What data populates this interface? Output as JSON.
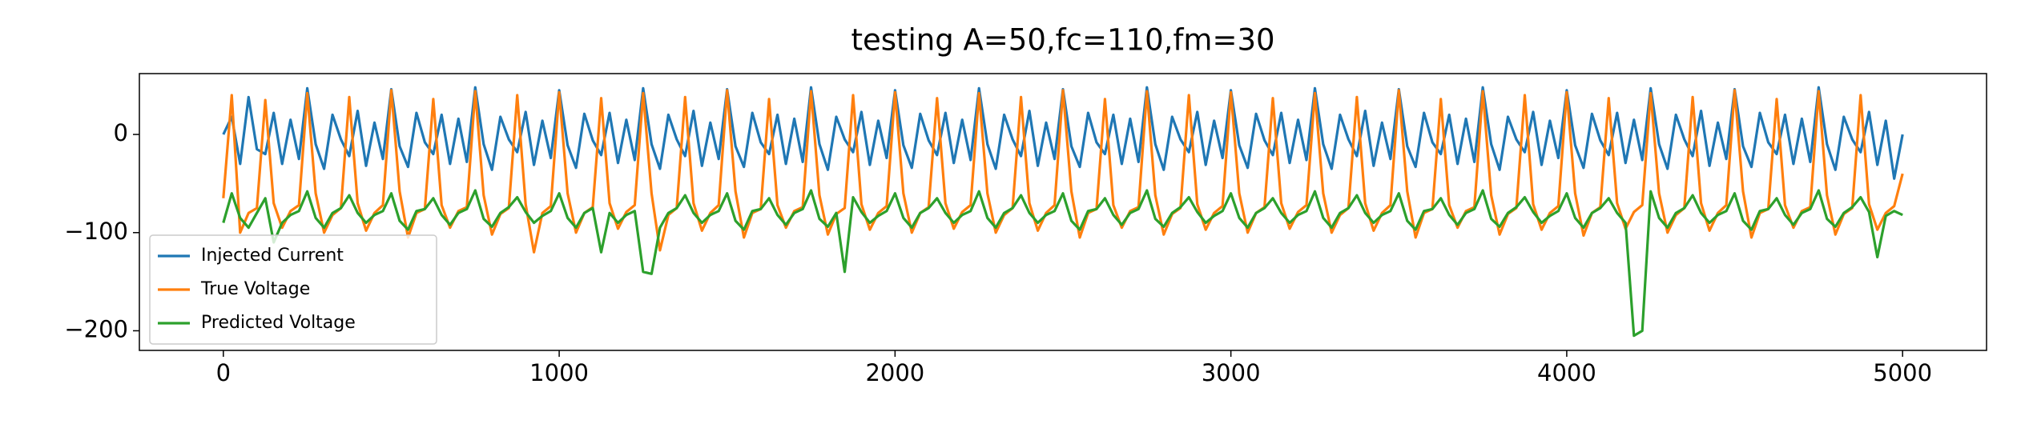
{
  "chart_data": {
    "type": "line",
    "title": "testing A=50,fc=110,fm=30",
    "xlim": [
      -250,
      5250
    ],
    "ylim": [
      -220,
      62
    ],
    "xticks": [
      0,
      1000,
      2000,
      3000,
      4000,
      5000
    ],
    "yticks": [
      {
        "value": 0,
        "label": "0"
      },
      {
        "value": -100,
        "label": "−100"
      },
      {
        "value": -200,
        "label": "−200"
      }
    ],
    "legend": "lower left",
    "x": [
      0,
      25,
      50,
      75,
      100,
      125,
      150,
      175,
      200,
      225,
      250,
      275,
      300,
      325,
      350,
      375,
      400,
      425,
      450,
      475,
      500,
      525,
      550,
      575,
      600,
      625,
      650,
      675,
      700,
      725,
      750,
      775,
      800,
      825,
      850,
      875,
      900,
      925,
      950,
      975,
      1000,
      1025,
      1050,
      1075,
      1100,
      1125,
      1150,
      1175,
      1200,
      1225,
      1250,
      1275,
      1300,
      1325,
      1350,
      1375,
      1400,
      1425,
      1450,
      1475,
      1500,
      1525,
      1550,
      1575,
      1600,
      1625,
      1650,
      1675,
      1700,
      1725,
      1750,
      1775,
      1800,
      1825,
      1850,
      1875,
      1900,
      1925,
      1950,
      1975,
      2000,
      2025,
      2050,
      2075,
      2100,
      2125,
      2150,
      2175,
      2200,
      2225,
      2250,
      2275,
      2300,
      2325,
      2350,
      2375,
      2400,
      2425,
      2450,
      2475,
      2500,
      2525,
      2550,
      2575,
      2600,
      2625,
      2650,
      2675,
      2700,
      2725,
      2750,
      2775,
      2800,
      2825,
      2850,
      2875,
      2900,
      2925,
      2950,
      2975,
      3000,
      3025,
      3050,
      3075,
      3100,
      3125,
      3150,
      3175,
      3200,
      3225,
      3250,
      3275,
      3300,
      3325,
      3350,
      3375,
      3400,
      3425,
      3450,
      3475,
      3500,
      3525,
      3550,
      3575,
      3600,
      3625,
      3650,
      3675,
      3700,
      3725,
      3750,
      3775,
      3800,
      3825,
      3850,
      3875,
      3900,
      3925,
      3950,
      3975,
      4000,
      4025,
      4050,
      4075,
      4100,
      4125,
      4150,
      4175,
      4200,
      4225,
      4250,
      4275,
      4300,
      4325,
      4350,
      4375,
      4400,
      4425,
      4450,
      4475,
      4500,
      4525,
      4550,
      4575,
      4600,
      4625,
      4650,
      4675,
      4700,
      4725,
      4750,
      4775,
      4800,
      4825,
      4850,
      4875,
      4900,
      4925,
      4950,
      4975,
      5000
    ],
    "series": [
      {
        "name": "Injected Current",
        "color": "#1f77b4",
        "values": [
          0,
          18,
          -30,
          38,
          -15,
          -20,
          22,
          -30,
          15,
          -25,
          47,
          -10,
          -35,
          20,
          -5,
          -22,
          24,
          -32,
          12,
          -25,
          46,
          -12,
          -33,
          22,
          -8,
          -20,
          20,
          -30,
          16,
          -28,
          48,
          -10,
          -36,
          18,
          -5,
          -18,
          23,
          -31,
          14,
          -24,
          45,
          -11,
          -34,
          21,
          -6,
          -21,
          22,
          -29,
          15,
          -26,
          47,
          -10,
          -35,
          20,
          -5,
          -22,
          24,
          -32,
          12,
          -25,
          46,
          -12,
          -33,
          22,
          -8,
          -20,
          20,
          -30,
          16,
          -28,
          48,
          -10,
          -36,
          18,
          -5,
          -18,
          23,
          -31,
          14,
          -24,
          45,
          -11,
          -34,
          21,
          -6,
          -21,
          22,
          -29,
          15,
          -26,
          47,
          -10,
          -35,
          20,
          -5,
          -22,
          24,
          -32,
          12,
          -25,
          46,
          -12,
          -33,
          22,
          -8,
          -20,
          20,
          -30,
          16,
          -28,
          48,
          -10,
          -36,
          18,
          -5,
          -18,
          23,
          -31,
          14,
          -24,
          45,
          -11,
          -34,
          21,
          -6,
          -21,
          22,
          -29,
          15,
          -26,
          47,
          -10,
          -35,
          20,
          -5,
          -22,
          24,
          -32,
          12,
          -25,
          46,
          -12,
          -33,
          22,
          -8,
          -20,
          20,
          -30,
          16,
          -28,
          48,
          -10,
          -36,
          18,
          -5,
          -18,
          23,
          -31,
          14,
          -24,
          45,
          -11,
          -34,
          21,
          -6,
          -21,
          22,
          -29,
          15,
          -26,
          47,
          -10,
          -35,
          20,
          -5,
          -22,
          24,
          -32,
          12,
          -25,
          46,
          -12,
          -33,
          22,
          -8,
          -20,
          20,
          -30,
          16,
          -28,
          48,
          -10,
          -36,
          18,
          -5,
          -18,
          23,
          -31,
          14,
          -45,
          0
        ]
      },
      {
        "name": "True Voltage",
        "color": "#ff7f0e",
        "values": [
          -65,
          40,
          -100,
          -80,
          -75,
          35,
          -70,
          -95,
          -78,
          -72,
          42,
          -60,
          -100,
          -82,
          -75,
          38,
          -70,
          -98,
          -80,
          -72,
          45,
          -58,
          -105,
          -80,
          -76,
          36,
          -72,
          -95,
          -78,
          -74,
          44,
          -62,
          -102,
          -81,
          -75,
          40,
          -71,
          -120,
          -80,
          -73,
          43,
          -60,
          -100,
          -80,
          -74,
          37,
          -70,
          -96,
          -79,
          -72,
          42,
          -60,
          -118,
          -82,
          -75,
          38,
          -70,
          -98,
          -80,
          -72,
          45,
          -58,
          -105,
          -80,
          -76,
          36,
          -72,
          -95,
          -78,
          -74,
          44,
          -62,
          -102,
          -81,
          -75,
          40,
          -71,
          -97,
          -80,
          -73,
          43,
          -60,
          -100,
          -80,
          -74,
          37,
          -70,
          -96,
          -79,
          -72,
          42,
          -60,
          -100,
          -82,
          -75,
          38,
          -70,
          -98,
          -80,
          -72,
          45,
          -58,
          -105,
          -80,
          -76,
          36,
          -72,
          -95,
          -78,
          -74,
          44,
          -62,
          -102,
          -81,
          -75,
          40,
          -71,
          -97,
          -80,
          -73,
          43,
          -60,
          -100,
          -80,
          -74,
          37,
          -70,
          -96,
          -79,
          -72,
          42,
          -60,
          -100,
          -82,
          -75,
          38,
          -70,
          -98,
          -80,
          -72,
          45,
          -58,
          -105,
          -80,
          -76,
          36,
          -72,
          -95,
          -78,
          -74,
          44,
          -62,
          -102,
          -81,
          -75,
          40,
          -71,
          -97,
          -80,
          -73,
          43,
          -60,
          -103,
          -80,
          -74,
          37,
          -70,
          -96,
          -79,
          -72,
          42,
          -60,
          -100,
          -82,
          -75,
          38,
          -70,
          -98,
          -80,
          -72,
          45,
          -58,
          -105,
          -80,
          -76,
          36,
          -72,
          -95,
          -78,
          -74,
          44,
          -62,
          -102,
          -81,
          -75,
          40,
          -71,
          -97,
          -80,
          -73,
          -40
        ]
      },
      {
        "name": "Predicted Voltage",
        "color": "#2ca02c",
        "values": [
          -90,
          -60,
          -85,
          -95,
          -80,
          -65,
          -110,
          -90,
          -82,
          -78,
          -58,
          -85,
          -95,
          -80,
          -75,
          -62,
          -80,
          -90,
          -82,
          -78,
          -60,
          -88,
          -97,
          -78,
          -76,
          -65,
          -82,
          -92,
          -80,
          -76,
          -57,
          -86,
          -94,
          -80,
          -74,
          -64,
          -79,
          -90,
          -83,
          -78,
          -60,
          -85,
          -95,
          -80,
          -75,
          -120,
          -80,
          -90,
          -82,
          -78,
          -140,
          -142,
          -95,
          -80,
          -75,
          -62,
          -80,
          -90,
          -82,
          -78,
          -60,
          -88,
          -97,
          -78,
          -76,
          -65,
          -82,
          -92,
          -80,
          -76,
          -57,
          -86,
          -94,
          -80,
          -140,
          -64,
          -79,
          -90,
          -83,
          -78,
          -60,
          -85,
          -95,
          -80,
          -75,
          -65,
          -80,
          -90,
          -82,
          -78,
          -58,
          -85,
          -95,
          -80,
          -75,
          -62,
          -80,
          -90,
          -82,
          -78,
          -60,
          -88,
          -97,
          -78,
          -76,
          -65,
          -82,
          -92,
          -80,
          -76,
          -57,
          -86,
          -94,
          -80,
          -74,
          -64,
          -79,
          -90,
          -83,
          -78,
          -60,
          -85,
          -95,
          -80,
          -75,
          -65,
          -80,
          -90,
          -82,
          -78,
          -58,
          -85,
          -95,
          -80,
          -75,
          -62,
          -80,
          -90,
          -82,
          -78,
          -60,
          -88,
          -97,
          -78,
          -76,
          -65,
          -82,
          -92,
          -80,
          -76,
          -57,
          -86,
          -94,
          -80,
          -74,
          -64,
          -79,
          -90,
          -83,
          -78,
          -60,
          -85,
          -95,
          -80,
          -75,
          -65,
          -80,
          -90,
          -205,
          -200,
          -58,
          -85,
          -95,
          -80,
          -75,
          -62,
          -80,
          -90,
          -82,
          -78,
          -60,
          -88,
          -97,
          -78,
          -76,
          -65,
          -82,
          -92,
          -80,
          -76,
          -57,
          -86,
          -94,
          -80,
          -74,
          -64,
          -79,
          -125,
          -83,
          -78,
          -82
        ]
      }
    ]
  }
}
